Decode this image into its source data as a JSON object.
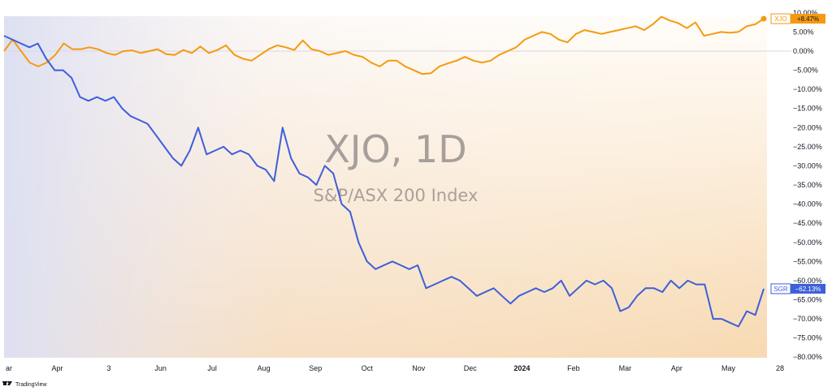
{
  "watermark": {
    "title": "XJO, 1D",
    "subtitle": "S&P/ASX 200 Index"
  },
  "branding": {
    "logo_text": "TradingView"
  },
  "colors": {
    "xjo": "#f59a10",
    "sgr": "#3d5fd9",
    "xjo_badge_text": "#131722",
    "sgr_badge_text": "#ffffff",
    "grid_zero": "#d6d9de"
  },
  "chart_data": {
    "type": "line",
    "title": "XJO, 1D",
    "subtitle": "S&P/ASX 200 Index",
    "y_axis": {
      "unit": "%",
      "range": [
        -80,
        10
      ],
      "ticks": [
        "10.00%",
        "5.00%",
        "0.00%",
        "−5.00%",
        "−10.00%",
        "−15.00%",
        "−20.00%",
        "−25.00%",
        "−30.00%",
        "−35.00%",
        "−40.00%",
        "−45.00%",
        "−50.00%",
        "−55.00%",
        "−60.00%",
        "−65.00%",
        "−70.00%",
        "−75.00%",
        "−80.00%"
      ]
    },
    "x_axis": {
      "labels": [
        "ar",
        "Apr",
        "3",
        "Jun",
        "Jul",
        "Aug",
        "Sep",
        "Oct",
        "Nov",
        "Dec",
        "2024",
        "Feb",
        "Mar",
        "Apr",
        "May",
        "28"
      ],
      "bold_labels": [
        "2024"
      ]
    },
    "grid": false,
    "series": [
      {
        "name": "XJO",
        "badge_label": "XJO",
        "last_value_label": "+8.47%",
        "last_value": 8.47,
        "points": [
          [
            0,
            0
          ],
          [
            1,
            3
          ],
          [
            2,
            0
          ],
          [
            3,
            -3
          ],
          [
            4,
            -4
          ],
          [
            5,
            -3
          ],
          [
            6,
            -1
          ],
          [
            7,
            2
          ],
          [
            8,
            0.5
          ],
          [
            9,
            0.5
          ],
          [
            10,
            1
          ],
          [
            11,
            0.5
          ],
          [
            12,
            -0.5
          ],
          [
            13,
            -1
          ],
          [
            14,
            0
          ],
          [
            15,
            0.2
          ],
          [
            16,
            -0.5
          ],
          [
            17,
            0
          ],
          [
            18,
            0.5
          ],
          [
            19,
            -0.8
          ],
          [
            20,
            -1
          ],
          [
            21,
            0.3
          ],
          [
            22,
            -0.5
          ],
          [
            23,
            1.2
          ],
          [
            24,
            -0.5
          ],
          [
            25,
            0.3
          ],
          [
            26,
            1.5
          ],
          [
            27,
            -1
          ],
          [
            28,
            -2
          ],
          [
            29,
            -2.5
          ],
          [
            30,
            -1
          ],
          [
            31,
            0.5
          ],
          [
            32,
            1.5
          ],
          [
            33,
            1
          ],
          [
            34,
            0.3
          ],
          [
            35,
            2.8
          ],
          [
            36,
            0.5
          ],
          [
            37,
            0
          ],
          [
            38,
            -1
          ],
          [
            39,
            -0.5
          ],
          [
            40,
            0
          ],
          [
            41,
            -1
          ],
          [
            42,
            -1.5
          ],
          [
            43,
            -3
          ],
          [
            44,
            -4
          ],
          [
            45,
            -2.5
          ],
          [
            46,
            -2.5
          ],
          [
            47,
            -4
          ],
          [
            48,
            -5
          ],
          [
            49,
            -6
          ],
          [
            50,
            -5.8
          ],
          [
            51,
            -4
          ],
          [
            52,
            -3.2
          ],
          [
            53,
            -2.5
          ],
          [
            54,
            -1.5
          ],
          [
            55,
            -2.5
          ],
          [
            56,
            -3
          ],
          [
            57,
            -2.5
          ],
          [
            58,
            -1
          ],
          [
            59,
            0
          ],
          [
            60,
            1
          ],
          [
            61,
            3
          ],
          [
            62,
            4
          ],
          [
            63,
            5
          ],
          [
            64,
            4.5
          ],
          [
            65,
            3
          ],
          [
            66,
            2.3
          ],
          [
            67,
            4.5
          ],
          [
            68,
            5.5
          ],
          [
            69,
            5
          ],
          [
            70,
            4.5
          ],
          [
            71,
            5
          ],
          [
            72,
            5.5
          ],
          [
            73,
            6
          ],
          [
            74,
            6.5
          ],
          [
            75,
            5.5
          ],
          [
            76,
            7
          ],
          [
            77,
            9
          ],
          [
            78,
            8
          ],
          [
            79,
            7.3
          ],
          [
            80,
            6
          ],
          [
            81,
            7.5
          ],
          [
            82,
            4
          ],
          [
            83,
            4.5
          ],
          [
            84,
            5
          ],
          [
            85,
            4.8
          ],
          [
            86,
            5
          ],
          [
            87,
            6.5
          ],
          [
            88,
            7
          ],
          [
            89,
            8.47
          ]
        ]
      },
      {
        "name": "SGR",
        "badge_label": "SGR",
        "last_value_label": "−62.13%",
        "last_value": -62.13,
        "points": [
          [
            0,
            4
          ],
          [
            1,
            3
          ],
          [
            2,
            2
          ],
          [
            3,
            1
          ],
          [
            4,
            2
          ],
          [
            5,
            -2
          ],
          [
            6,
            -5
          ],
          [
            7,
            -5
          ],
          [
            8,
            -7
          ],
          [
            9,
            -12
          ],
          [
            10,
            -13
          ],
          [
            11,
            -12
          ],
          [
            12,
            -13
          ],
          [
            13,
            -12
          ],
          [
            14,
            -15
          ],
          [
            15,
            -17
          ],
          [
            16,
            -18
          ],
          [
            17,
            -19
          ],
          [
            18,
            -22
          ],
          [
            19,
            -25
          ],
          [
            20,
            -28
          ],
          [
            21,
            -30
          ],
          [
            22,
            -26
          ],
          [
            23,
            -20
          ],
          [
            24,
            -27
          ],
          [
            25,
            -26
          ],
          [
            26,
            -25
          ],
          [
            27,
            -27
          ],
          [
            28,
            -26
          ],
          [
            29,
            -27
          ],
          [
            30,
            -30
          ],
          [
            31,
            -31
          ],
          [
            32,
            -34
          ],
          [
            33,
            -20
          ],
          [
            34,
            -28
          ],
          [
            35,
            -32
          ],
          [
            36,
            -33
          ],
          [
            37,
            -35
          ],
          [
            38,
            -30
          ],
          [
            39,
            -32
          ],
          [
            40,
            -40
          ],
          [
            41,
            -42
          ],
          [
            42,
            -50
          ],
          [
            43,
            -55
          ],
          [
            44,
            -57
          ],
          [
            45,
            -56
          ],
          [
            46,
            -55
          ],
          [
            47,
            -56
          ],
          [
            48,
            -57
          ],
          [
            49,
            -56
          ],
          [
            50,
            -62
          ],
          [
            51,
            -61
          ],
          [
            52,
            -60
          ],
          [
            53,
            -59
          ],
          [
            54,
            -60
          ],
          [
            55,
            -62
          ],
          [
            56,
            -64
          ],
          [
            57,
            -63
          ],
          [
            58,
            -62
          ],
          [
            59,
            -64
          ],
          [
            60,
            -66
          ],
          [
            61,
            -64
          ],
          [
            62,
            -63
          ],
          [
            63,
            -62
          ],
          [
            64,
            -63
          ],
          [
            65,
            -62
          ],
          [
            66,
            -60
          ],
          [
            67,
            -64
          ],
          [
            68,
            -62
          ],
          [
            69,
            -60
          ],
          [
            70,
            -61
          ],
          [
            71,
            -60
          ],
          [
            72,
            -62
          ],
          [
            73,
            -68
          ],
          [
            74,
            -67
          ],
          [
            75,
            -64
          ],
          [
            76,
            -62
          ],
          [
            77,
            -62
          ],
          [
            78,
            -63
          ],
          [
            79,
            -60
          ],
          [
            80,
            -62
          ],
          [
            81,
            -60
          ],
          [
            82,
            -61
          ],
          [
            83,
            -61
          ],
          [
            84,
            -70
          ],
          [
            85,
            -70
          ],
          [
            86,
            -71
          ],
          [
            87,
            -72
          ],
          [
            88,
            -68
          ],
          [
            89,
            -69
          ],
          [
            90,
            -62.13
          ]
        ]
      }
    ]
  }
}
